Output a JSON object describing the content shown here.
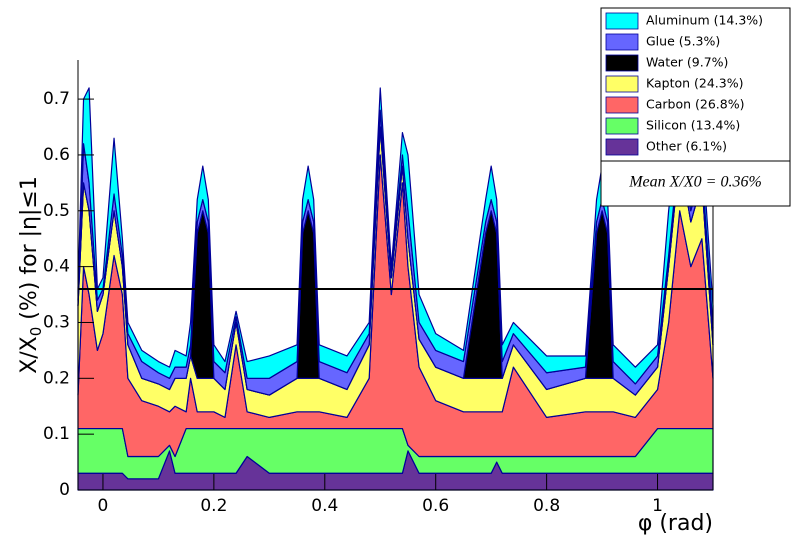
{
  "chart_data": {
    "type": "stacked_area",
    "ylabel": [
      "X/X",
      "0",
      " (%) for |η|≤1"
    ],
    "xlabel": "φ (rad)",
    "xlim": [
      -0.045,
      1.1
    ],
    "ylim": [
      0,
      0.77
    ],
    "xticks": [
      0,
      0.2,
      0.4,
      0.6,
      0.8,
      1
    ],
    "yticks": [
      0,
      0.1,
      0.2,
      0.3,
      0.4,
      0.5,
      0.6,
      0.7
    ],
    "mean": 0.36,
    "annotation": "Mean X/X0 = 0.36%",
    "legend": "top-right",
    "x": [
      -0.045,
      -0.035,
      -0.025,
      -0.01,
      0,
      0.02,
      0.035,
      0.045,
      0.07,
      0.1,
      0.12,
      0.13,
      0.15,
      0.158,
      0.17,
      0.18,
      0.19,
      0.2,
      0.22,
      0.24,
      0.26,
      0.3,
      0.35,
      0.36,
      0.37,
      0.38,
      0.39,
      0.44,
      0.48,
      0.5,
      0.52,
      0.54,
      0.55,
      0.57,
      0.6,
      0.65,
      0.69,
      0.7,
      0.71,
      0.72,
      0.74,
      0.8,
      0.87,
      0.89,
      0.9,
      0.91,
      0.92,
      0.96,
      1,
      1.02,
      1.04,
      1.06,
      1.08,
      1.1
    ],
    "series": [
      {
        "name": "Aluminum (14.3%)",
        "color": "#00ffff",
        "values": [
          0.02,
          0.08,
          0.17,
          0.02,
          0.02,
          0.1,
          0.03,
          0.02,
          0.02,
          0.02,
          0.02,
          0.03,
          0.02,
          0.04,
          0.04,
          0.06,
          0.04,
          0.03,
          0.02,
          0.01,
          0.03,
          0.04,
          0.03,
          0.04,
          0.06,
          0.04,
          0.03,
          0.03,
          0.02,
          0.04,
          0.01,
          0.04,
          0.1,
          0.05,
          0.03,
          0.02,
          0.04,
          0.06,
          0.04,
          0.03,
          0.02,
          0.03,
          0.02,
          0.04,
          0.06,
          0.04,
          0.03,
          0.03,
          0.02,
          0.08,
          0.06,
          0.08,
          0.04,
          0.04
        ]
      },
      {
        "name": "Glue (5.3%)",
        "color": "#6666ff",
        "values": [
          0.01,
          0.07,
          0.05,
          0.02,
          0.01,
          0.03,
          0.02,
          0.02,
          0.03,
          0.02,
          0.02,
          0.02,
          0.02,
          0.02,
          0.02,
          0.02,
          0.02,
          0.03,
          0.03,
          0.01,
          0.02,
          0.03,
          0.03,
          0.02,
          0.02,
          0.02,
          0.03,
          0.03,
          0.02,
          0.03,
          0.01,
          0.02,
          0.05,
          0.03,
          0.03,
          0.03,
          0.02,
          0.02,
          0.02,
          0.03,
          0.02,
          0.03,
          0.02,
          0.02,
          0.02,
          0.02,
          0.03,
          0.02,
          0.02,
          0.02,
          0.02,
          0.02,
          0.03,
          0.03
        ]
      },
      {
        "name": "Water (9.7%)",
        "color": "#000000",
        "values": [
          0,
          0,
          0,
          0,
          0,
          0,
          0,
          0,
          0,
          0,
          0,
          0,
          0,
          0,
          0.26,
          0.3,
          0.26,
          0,
          0,
          0,
          0,
          0,
          0,
          0.26,
          0.3,
          0.26,
          0,
          0,
          0,
          0,
          0,
          0,
          0,
          0,
          0,
          0,
          0.26,
          0.3,
          0.26,
          0,
          0,
          0,
          0,
          0.26,
          0.3,
          0.26,
          0,
          0,
          0,
          0,
          0,
          0,
          0,
          0
        ]
      },
      {
        "name": "Kapton (24.3%)",
        "color": "#ffff66",
        "values": [
          0.16,
          0.15,
          0.15,
          0.07,
          0.07,
          0.08,
          0.05,
          0.06,
          0.04,
          0.04,
          0.04,
          0.05,
          0.06,
          0.04,
          0.06,
          0.06,
          0.06,
          0.06,
          0.05,
          0.04,
          0.04,
          0.04,
          0.06,
          0.06,
          0.06,
          0.06,
          0.06,
          0.05,
          0.06,
          0.05,
          0.03,
          0.03,
          0.05,
          0.05,
          0.06,
          0.06,
          0.06,
          0.06,
          0.06,
          0.06,
          0.04,
          0.05,
          0.06,
          0.06,
          0.06,
          0.06,
          0.06,
          0.04,
          0.04,
          0.1,
          0.1,
          0.08,
          0.1,
          0.06
        ]
      },
      {
        "name": "Carbon (26.8%)",
        "color": "#ff6666",
        "values": [
          0.06,
          0.29,
          0.24,
          0.14,
          0.17,
          0.31,
          0.24,
          0.14,
          0.1,
          0.09,
          0.06,
          0.09,
          0.03,
          0.09,
          0.03,
          0.03,
          0.03,
          0.03,
          0.02,
          0.15,
          0.03,
          0.02,
          0.03,
          0.03,
          0.03,
          0.03,
          0.03,
          0.02,
          0.09,
          0.49,
          0.24,
          0.44,
          0.32,
          0.16,
          0.1,
          0.08,
          0.08,
          0.08,
          0.08,
          0.08,
          0.16,
          0.07,
          0.08,
          0.08,
          0.08,
          0.08,
          0.08,
          0.07,
          0.07,
          0.19,
          0.39,
          0.29,
          0.34,
          0.09
        ]
      },
      {
        "name": "Silicon (13.4%)",
        "color": "#66ff66",
        "values": [
          0.08,
          0.08,
          0.08,
          0.08,
          0.08,
          0.08,
          0.08,
          0.04,
          0.04,
          0.04,
          0.01,
          0.03,
          0.08,
          0.08,
          0.08,
          0.08,
          0.08,
          0.08,
          0.08,
          0.08,
          0.05,
          0.08,
          0.08,
          0.08,
          0.08,
          0.08,
          0.08,
          0.08,
          0.08,
          0.08,
          0.08,
          0.08,
          0.01,
          0.03,
          0.03,
          0.03,
          0.03,
          0.03,
          0.01,
          0.03,
          0.03,
          0.03,
          0.03,
          0.03,
          0.03,
          0.03,
          0.03,
          0.03,
          0.08,
          0.08,
          0.08,
          0.08,
          0.08,
          0.08
        ]
      },
      {
        "name": "Other (6.1%)",
        "color": "#663399",
        "values": [
          0.03,
          0.03,
          0.03,
          0.03,
          0.03,
          0.03,
          0.03,
          0.02,
          0.02,
          0.02,
          0.07,
          0.03,
          0.03,
          0.03,
          0.03,
          0.03,
          0.03,
          0.03,
          0.03,
          0.03,
          0.06,
          0.03,
          0.03,
          0.03,
          0.03,
          0.03,
          0.03,
          0.03,
          0.03,
          0.03,
          0.03,
          0.03,
          0.07,
          0.03,
          0.03,
          0.03,
          0.03,
          0.03,
          0.05,
          0.03,
          0.03,
          0.03,
          0.03,
          0.03,
          0.03,
          0.03,
          0.03,
          0.03,
          0.03,
          0.03,
          0.03,
          0.03,
          0.03,
          0.03
        ]
      }
    ]
  }
}
